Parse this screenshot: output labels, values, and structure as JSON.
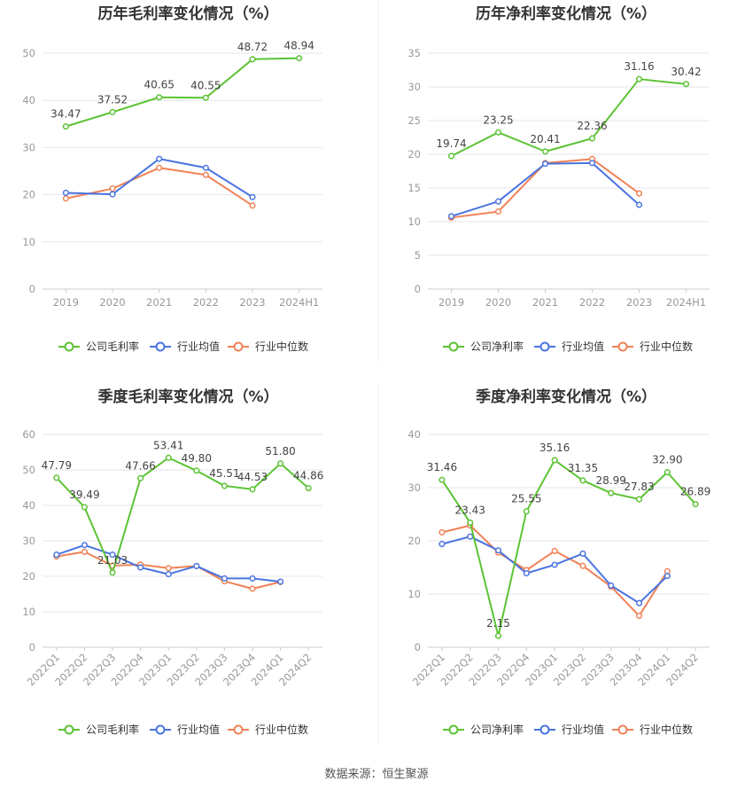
{
  "colors": {
    "company": "#5cc334",
    "avg": "#4a74e0",
    "median": "#f08257"
  },
  "legend_names": {
    "gross": [
      "公司毛利率",
      "行业均值",
      "行业中位数"
    ],
    "net": [
      "公司净利率",
      "行业均值",
      "行业中位数"
    ]
  },
  "source": "数据来源：恒生聚源",
  "chart_data": [
    {
      "type": "line",
      "title": "历年毛利率变化情况（%）",
      "categories": [
        "2019",
        "2020",
        "2021",
        "2022",
        "2023",
        "2024H1"
      ],
      "ylim": [
        0,
        50
      ],
      "yticks": [
        0,
        10,
        20,
        30,
        40,
        50
      ],
      "grid": true,
      "legend": "bottom",
      "rotate_x": false,
      "series": [
        {
          "name": "公司毛利率",
          "values": [
            34.47,
            37.52,
            40.65,
            40.55,
            48.72,
            48.94
          ],
          "labels": true
        },
        {
          "name": "行业均值",
          "values": [
            20.4,
            20.1,
            27.6,
            25.7,
            19.5,
            null
          ]
        },
        {
          "name": "行业中位数",
          "values": [
            19.2,
            21.3,
            25.7,
            24.2,
            17.7,
            null
          ]
        }
      ]
    },
    {
      "type": "line",
      "title": "历年净利率变化情况（%）",
      "categories": [
        "2019",
        "2020",
        "2021",
        "2022",
        "2023",
        "2024H1"
      ],
      "ylim": [
        0,
        35
      ],
      "yticks": [
        0,
        5,
        10,
        15,
        20,
        25,
        30,
        35
      ],
      "grid": true,
      "legend": "bottom",
      "rotate_x": false,
      "series": [
        {
          "name": "公司净利率",
          "values": [
            19.74,
            23.25,
            20.41,
            22.36,
            31.16,
            30.42
          ],
          "labels": true
        },
        {
          "name": "行业均值",
          "values": [
            10.8,
            13.0,
            18.6,
            18.7,
            12.5,
            null
          ]
        },
        {
          "name": "行业中位数",
          "values": [
            10.6,
            11.5,
            18.7,
            19.3,
            14.2,
            null
          ]
        }
      ]
    },
    {
      "type": "line",
      "title": "季度毛利率变化情况（%）",
      "categories": [
        "2022Q1",
        "2022Q2",
        "2022Q3",
        "2022Q4",
        "2023Q1",
        "2023Q2",
        "2023Q3",
        "2023Q4",
        "2024Q1",
        "2024Q2"
      ],
      "ylim": [
        0,
        60
      ],
      "yticks": [
        0,
        10,
        20,
        30,
        40,
        50,
        60
      ],
      "grid": true,
      "legend": "bottom",
      "rotate_x": true,
      "series": [
        {
          "name": "公司毛利率",
          "values": [
            47.79,
            39.49,
            21.03,
            47.66,
            53.41,
            49.8,
            45.51,
            44.53,
            51.8,
            44.86
          ],
          "labels": true
        },
        {
          "name": "行业均值",
          "values": [
            26.1,
            28.8,
            26.1,
            22.5,
            20.6,
            22.9,
            19.4,
            19.4,
            18.5,
            null
          ]
        },
        {
          "name": "行业中位数",
          "values": [
            25.6,
            26.9,
            23.0,
            23.3,
            22.3,
            22.9,
            18.6,
            16.5,
            18.4,
            null
          ]
        }
      ]
    },
    {
      "type": "line",
      "title": "季度净利率变化情况（%）",
      "categories": [
        "2022Q1",
        "2022Q2",
        "2022Q3",
        "2022Q4",
        "2023Q1",
        "2023Q2",
        "2023Q3",
        "2023Q4",
        "2024Q1",
        "2024Q2"
      ],
      "ylim": [
        0,
        40
      ],
      "yticks": [
        0,
        10,
        20,
        30,
        40
      ],
      "grid": true,
      "legend": "bottom",
      "rotate_x": true,
      "series": [
        {
          "name": "公司净利率",
          "values": [
            31.46,
            23.43,
            2.15,
            25.55,
            35.16,
            31.35,
            28.99,
            27.83,
            32.9,
            26.89
          ],
          "labels": true
        },
        {
          "name": "行业均值",
          "values": [
            19.4,
            20.8,
            18.2,
            13.9,
            15.5,
            17.6,
            11.6,
            8.3,
            13.4,
            null
          ]
        },
        {
          "name": "行业中位数",
          "values": [
            21.6,
            22.9,
            17.8,
            14.5,
            18.1,
            15.3,
            11.4,
            5.9,
            14.3,
            null
          ]
        }
      ]
    }
  ]
}
